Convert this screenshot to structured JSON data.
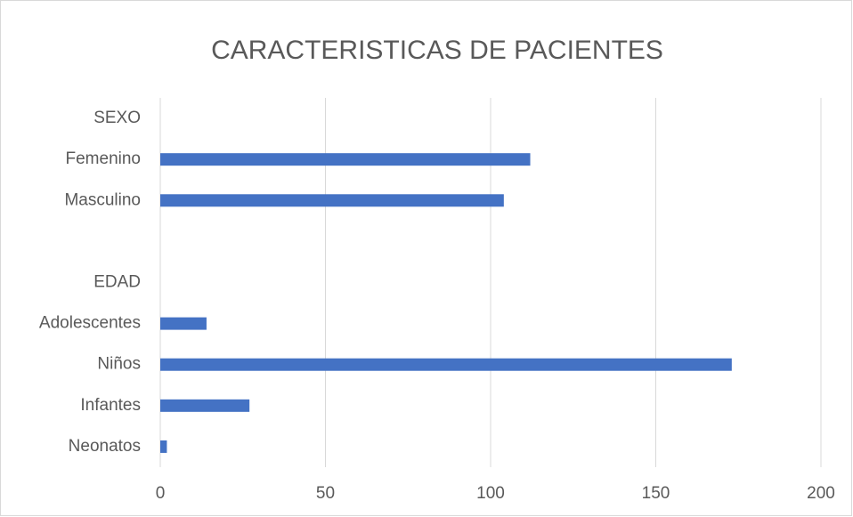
{
  "chart_data": {
    "type": "bar",
    "orientation": "horizontal",
    "title": "CARACTERISTICAS DE PACIENTES",
    "categories": [
      "SEXO",
      "Femenino",
      "Masculino",
      null,
      "EDAD",
      "Adolescentes",
      "Niños",
      "Infantes",
      "Neonatos"
    ],
    "values": [
      null,
      112,
      104,
      null,
      null,
      14,
      173,
      27,
      2
    ],
    "color": "#4472c4",
    "xlim": [
      0,
      200
    ],
    "xticks": [
      0,
      50,
      100,
      150,
      200
    ],
    "grid": true
  }
}
